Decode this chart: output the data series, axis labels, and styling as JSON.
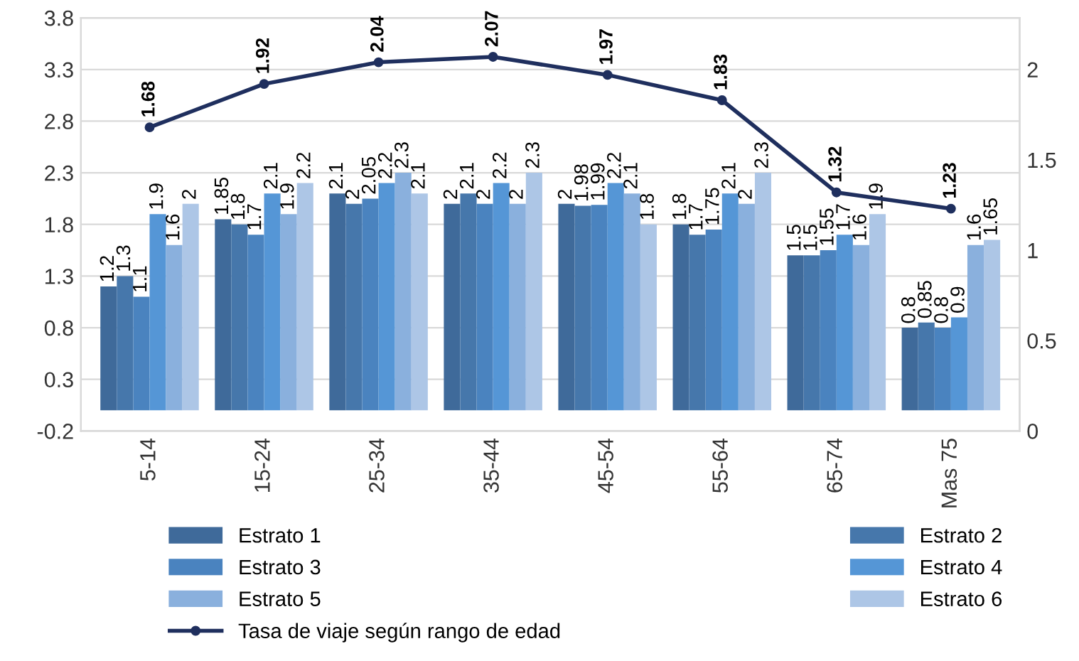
{
  "chart_data": {
    "type": "bar",
    "categories": [
      "5-14",
      "15-24",
      "25-34",
      "35-44",
      "45-54",
      "55-64",
      "65-74",
      "Mas 75"
    ],
    "series": [
      {
        "name": "Estrato 1",
        "color": "#3f6a9a",
        "values": [
          1.2,
          1.85,
          2.1,
          2,
          2,
          1.8,
          1.5,
          0.8
        ]
      },
      {
        "name": "Estrato 2",
        "color": "#4677ab",
        "values": [
          1.3,
          1.8,
          2,
          2.1,
          1.98,
          1.7,
          1.5,
          0.85
        ]
      },
      {
        "name": "Estrato 3",
        "color": "#4a83bf",
        "values": [
          1.1,
          1.7,
          2.05,
          2,
          1.99,
          1.75,
          1.55,
          0.8
        ]
      },
      {
        "name": "Estrato 4",
        "color": "#5596d6",
        "values": [
          1.9,
          2.1,
          2.2,
          2.2,
          2.2,
          2.1,
          1.7,
          0.9
        ]
      },
      {
        "name": "Estrato 5",
        "color": "#8ab0dd",
        "values": [
          1.6,
          1.9,
          2.3,
          2,
          2.1,
          2,
          1.6,
          1.6
        ]
      },
      {
        "name": "Estrato 6",
        "color": "#adc6e6",
        "values": [
          2,
          2.2,
          2.1,
          2.3,
          1.8,
          2.3,
          1.9,
          1.65
        ]
      },
      {
        "name": "Tasa de viaje según rango de edad",
        "type": "line",
        "axis": "y2",
        "color": "#1f2f5e",
        "marker": "circle",
        "values": [
          1.68,
          1.92,
          2.04,
          2.07,
          1.97,
          1.83,
          1.32,
          1.23
        ]
      }
    ],
    "ylim": [
      -0.2,
      3.8
    ],
    "yticks": [
      -0.2,
      0.3,
      0.8,
      1.3,
      1.8,
      2.3,
      2.8,
      3.3,
      3.8
    ],
    "y2lim": [
      0,
      2.2857
    ],
    "y2ticks": [
      0,
      0.5,
      1,
      1.5,
      2
    ],
    "grid": "y",
    "legend": "bottom",
    "data_labels": true
  }
}
